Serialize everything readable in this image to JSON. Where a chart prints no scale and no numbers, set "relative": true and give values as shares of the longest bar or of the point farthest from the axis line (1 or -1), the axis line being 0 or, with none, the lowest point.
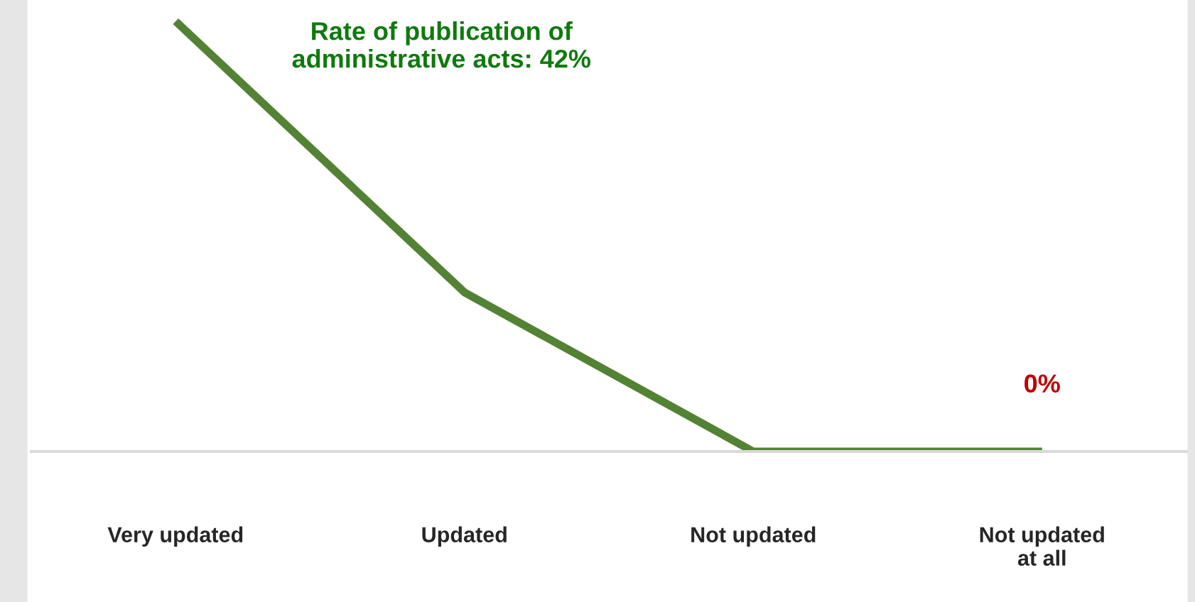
{
  "chart_data": {
    "type": "line",
    "relative": true,
    "categories": [
      "Very updated",
      "Updated",
      "Not updated",
      "Not updated at all"
    ],
    "series": [
      {
        "color": "#548235",
        "values": [
          1,
          0.37,
          0,
          0
        ]
      }
    ],
    "annotations": [
      "Rate of publication of administrative acts: 42%",
      {
        "text": "0%",
        "x": "Not updated at all",
        "y": 0
      }
    ],
    "grid": false,
    "legend": false,
    "marker": "none",
    "line_style": "solid"
  }
}
